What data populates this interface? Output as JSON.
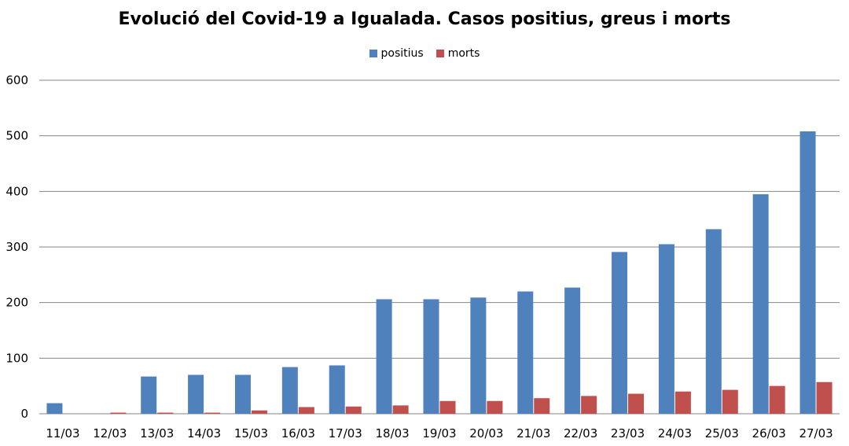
{
  "chart_data": {
    "type": "bar",
    "title": "Evolució del Covid-19 a Igualada. Casos positius, greus i morts",
    "xlabel": "",
    "ylabel": "",
    "ylim": [
      0,
      600
    ],
    "yticks": [
      0,
      100,
      200,
      300,
      400,
      500,
      600
    ],
    "grid": true,
    "legend_position": "top",
    "categories": [
      "11/03",
      "12/03",
      "13/03",
      "14/03",
      "15/03",
      "16/03",
      "17/03",
      "18/03",
      "19/03",
      "20/03",
      "21/03",
      "22/03",
      "23/03",
      "24/03",
      "25/03",
      "26/03",
      "27/03"
    ],
    "series": [
      {
        "name": "positius",
        "color": "#4F81BD",
        "values": [
          19,
          0,
          67,
          70,
          70,
          84,
          87,
          206,
          206,
          209,
          220,
          227,
          291,
          305,
          332,
          395,
          508
        ]
      },
      {
        "name": "morts",
        "color": "#C0504D",
        "values": [
          0,
          2,
          2,
          2,
          6,
          12,
          13,
          15,
          23,
          23,
          28,
          32,
          36,
          40,
          43,
          50,
          57
        ]
      }
    ]
  }
}
